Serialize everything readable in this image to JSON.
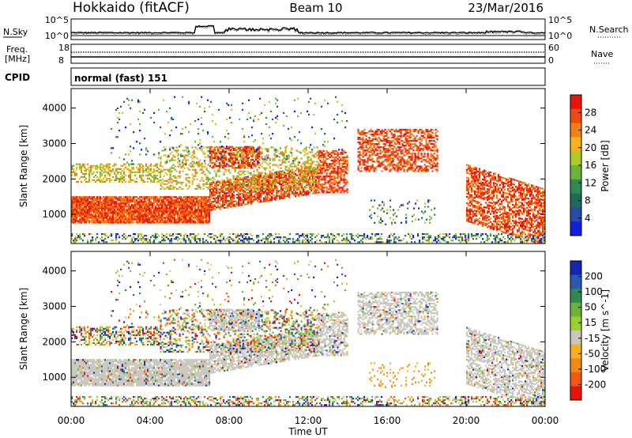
{
  "header": {
    "site": "Hokkaido (fitACF)",
    "beam": "Beam 10",
    "date": "23/Mar/2016"
  },
  "noise_panel": {
    "left_label": "N.Sky",
    "right_label": "N.Search",
    "left_ticks": [
      "10^5",
      "10^0"
    ],
    "right_ticks": [
      "10^5",
      "10^0"
    ]
  },
  "freq_panel": {
    "left_label_1": "Freq.",
    "left_label_2": "[MHz]",
    "left_ticks": [
      "18",
      "8"
    ],
    "right_ticks": [
      "60",
      "0"
    ],
    "right_label": "Nave"
  },
  "cpid": {
    "label": "CPID",
    "value": "normal (fast) 151"
  },
  "power_colorbar": {
    "label": "Power [dB]",
    "ticks": [
      "28",
      "24",
      "20",
      "16",
      "12",
      "8",
      "4"
    ],
    "colors": [
      "#e8140c",
      "#f04a10",
      "#f57f0f",
      "#f9b21a",
      "#b0c828",
      "#6ab43a",
      "#2e8a4e",
      "#1f6a5a",
      "#2a4aa8",
      "#1020e0"
    ]
  },
  "velocity_colorbar": {
    "label": "Velocity [m s^-1]",
    "ticks": [
      "200",
      "100",
      "50",
      "15",
      "-15",
      "-50",
      "-100",
      "-200"
    ],
    "colors": [
      "#1626b0",
      "#2a5ab0",
      "#2e8a4e",
      "#6ab43a",
      "#9ad02a",
      "#c8c8c0",
      "#f4b020",
      "#f08a14",
      "#f05a10",
      "#e8140c"
    ]
  },
  "chart_data": {
    "type": "heatmap",
    "xlabel": "Time UT",
    "ylabel": "Slant Range [km]",
    "x_ticks": [
      "00:00",
      "04:00",
      "08:00",
      "12:00",
      "16:00",
      "20:00",
      "00:00"
    ],
    "y_ticks": [
      "1000",
      "2000",
      "3000",
      "4000"
    ],
    "xlim_hours": [
      0,
      24
    ],
    "ylim_km": [
      180,
      4550
    ],
    "panels": [
      "power",
      "velocity"
    ]
  }
}
